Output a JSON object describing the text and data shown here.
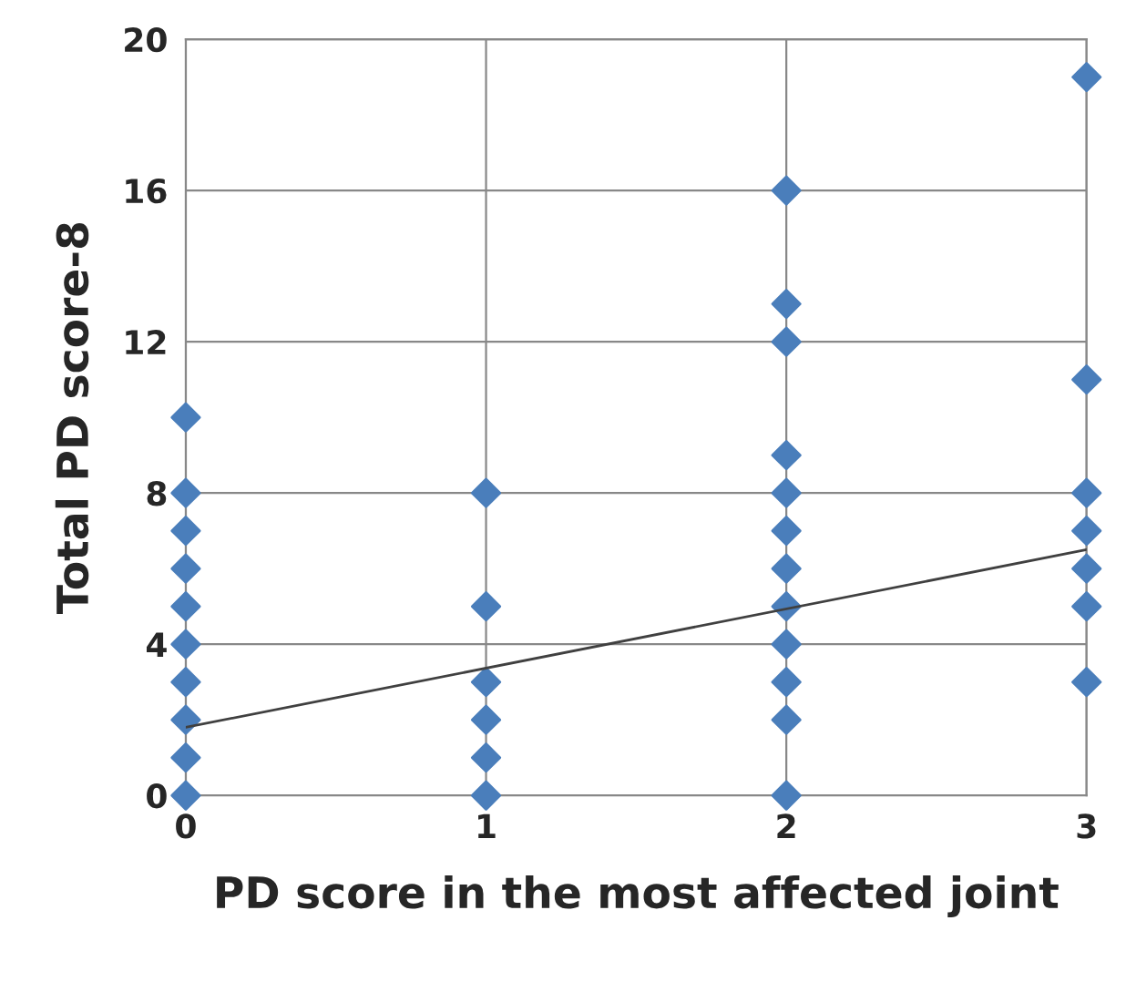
{
  "chart_data": {
    "type": "scatter",
    "xlabel": "PD score in the most affected joint",
    "ylabel": "Total PD score-8",
    "xlim": [
      0,
      3
    ],
    "ylim": [
      0,
      20
    ],
    "xticks": [
      0,
      1,
      2,
      3
    ],
    "yticks": [
      0,
      4,
      8,
      12,
      16,
      20
    ],
    "grid": true,
    "series": [
      {
        "marker": "diamond",
        "color": "#4a7ebb",
        "x": [
          0,
          0,
          0,
          0,
          0,
          0,
          0,
          0,
          0,
          0,
          1,
          1,
          1,
          1,
          1,
          1,
          2,
          2,
          2,
          2,
          2,
          2,
          2,
          2,
          2,
          2,
          2,
          2,
          3,
          3,
          3,
          3,
          3,
          3,
          3
        ],
        "values": [
          10,
          8,
          7,
          6,
          5,
          4,
          3,
          2,
          1,
          0,
          8,
          5,
          3,
          2,
          1,
          0,
          16,
          13,
          12,
          9,
          8,
          7,
          6,
          5,
          4,
          3,
          2,
          0,
          19,
          11,
          8,
          7,
          6,
          5,
          3
        ]
      },
      {
        "type": "line",
        "marker": "none",
        "color": "#404040",
        "x": [
          0,
          3
        ],
        "values": [
          1.8,
          6.5
        ]
      }
    ]
  }
}
